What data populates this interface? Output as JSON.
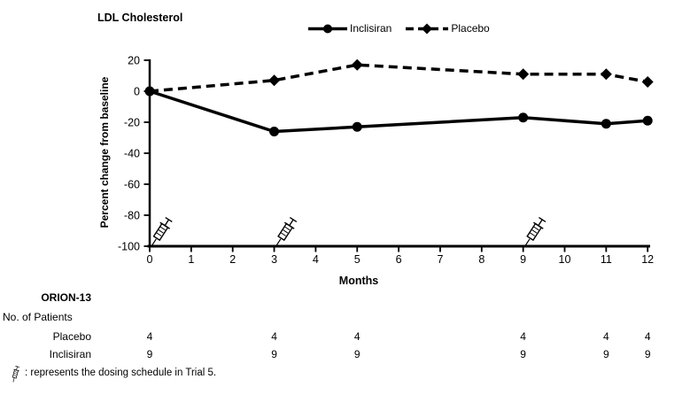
{
  "chart_data": {
    "type": "line",
    "title": "LDL Cholesterol",
    "xlabel": "Months",
    "ylabel": "Percent change from baseline",
    "xlim": [
      0,
      12
    ],
    "ylim": [
      -100,
      20
    ],
    "x_ticks": [
      0,
      1,
      2,
      3,
      4,
      5,
      6,
      7,
      8,
      9,
      10,
      11,
      12
    ],
    "y_ticks": [
      20,
      0,
      -20,
      -40,
      -60,
      -80,
      -100
    ],
    "x": [
      0,
      3,
      5,
      9,
      11,
      12
    ],
    "series": [
      {
        "name": "Inclisiran",
        "line": "solid",
        "marker": "circle",
        "values": [
          0,
          -26,
          -23,
          -17,
          -21,
          -19
        ]
      },
      {
        "name": "Placebo",
        "line": "dashed",
        "marker": "diamond",
        "values": [
          0,
          7,
          17,
          11,
          11,
          6
        ]
      }
    ],
    "dose_marker_months": [
      0,
      3,
      9
    ],
    "grid": false,
    "legend_position": "top-center",
    "line_color": "#000000"
  },
  "table": {
    "study_label": "ORION-13",
    "header_label": "No. of Patients",
    "rows": [
      {
        "label": "Placebo",
        "months": [
          0,
          3,
          5,
          9,
          11,
          12
        ],
        "values": [
          "4",
          "4",
          "4",
          "4",
          "4",
          "4"
        ]
      },
      {
        "label": "Inclisiran",
        "months": [
          0,
          3,
          5,
          9,
          11,
          12
        ],
        "values": [
          "9",
          "9",
          "9",
          "9",
          "9",
          "9"
        ]
      }
    ]
  },
  "footnote": {
    "text": ": represents the dosing schedule in Trial 5."
  },
  "colors": {
    "foreground": "#000000",
    "background": "#ffffff"
  }
}
